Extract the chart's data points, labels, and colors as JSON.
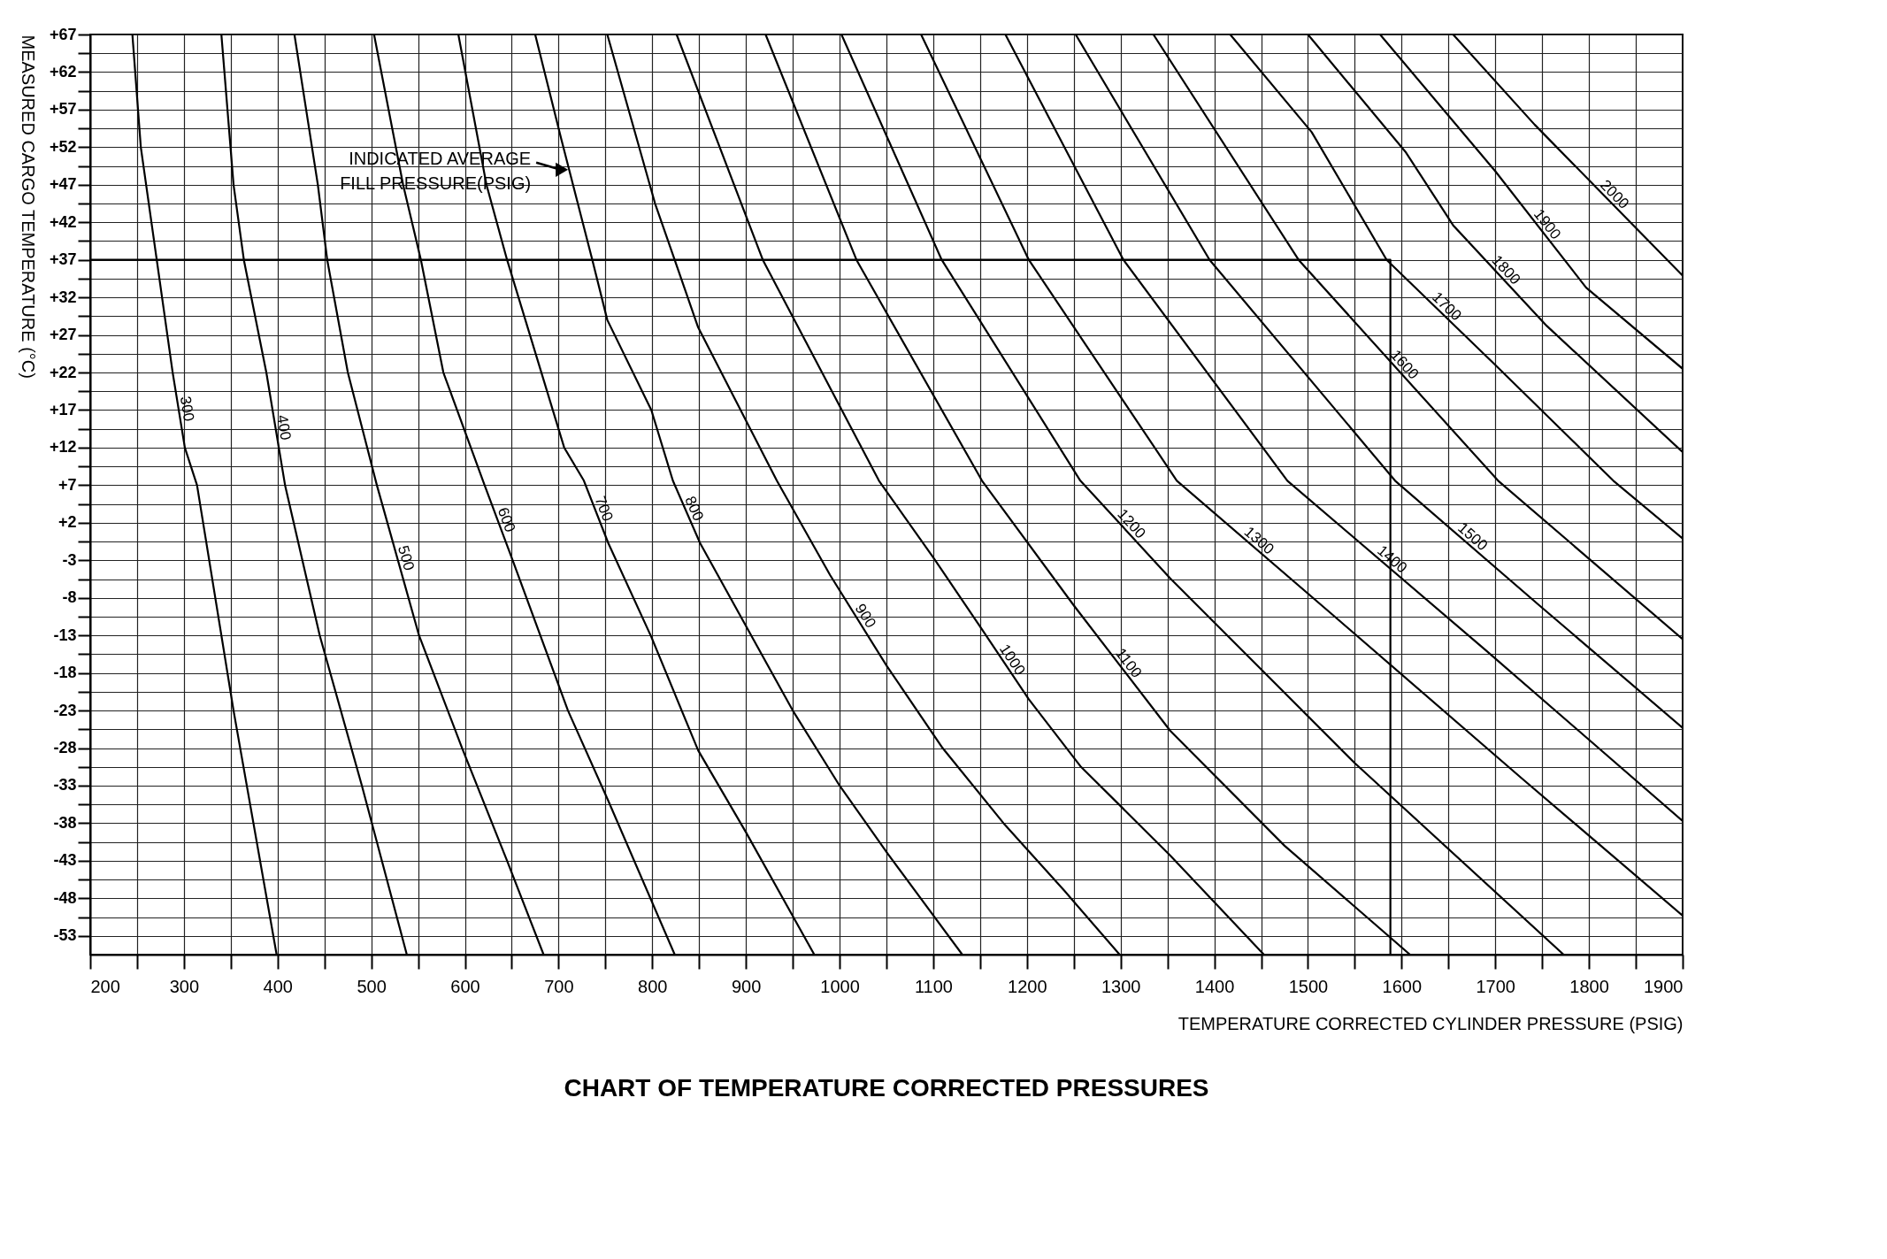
{
  "chart_data": {
    "type": "line",
    "title": "CHART OF TEMPERATURE CORRECTED PRESSURES",
    "xlabel": "TEMPERATURE CORRECTED CYLINDER PRESSURE (PSIG)",
    "ylabel": "MEASURED CARGO TEMPERATURE (°C)",
    "xlim": [
      200,
      1900
    ],
    "ylim": [
      -55.5,
      67
    ],
    "xticks": [
      200,
      {
        "value": 250,
        "label": null
      },
      300,
      {
        "value": 350,
        "label": null
      },
      400,
      {
        "value": 450,
        "label": null
      },
      500,
      {
        "value": 550,
        "label": null
      },
      600,
      {
        "value": 650,
        "label": null
      },
      700,
      {
        "value": 750,
        "label": null
      },
      800,
      {
        "value": 850,
        "label": null
      },
      900,
      {
        "value": 950,
        "label": null
      },
      1000,
      {
        "value": 1050,
        "label": null
      },
      1100,
      {
        "value": 1150,
        "label": null
      },
      1200,
      {
        "value": 1250,
        "label": null
      },
      1300,
      {
        "value": 1350,
        "label": null
      },
      1400,
      {
        "value": 1450,
        "label": null
      },
      1500,
      {
        "value": 1550,
        "label": null
      },
      1600,
      {
        "value": 1650,
        "label": null
      },
      1700,
      {
        "value": 1750,
        "label": null
      },
      1800,
      {
        "value": 1850,
        "label": null
      },
      1900
    ],
    "yticks": [
      {
        "value": 67,
        "label": "+67"
      },
      {
        "value": 64.5,
        "label": null
      },
      {
        "value": 62,
        "label": "+62"
      },
      {
        "value": 59.5,
        "label": null
      },
      {
        "value": 57,
        "label": "+57"
      },
      {
        "value": 54.5,
        "label": null
      },
      {
        "value": 52,
        "label": "+52"
      },
      {
        "value": 49.5,
        "label": null
      },
      {
        "value": 47,
        "label": "+47"
      },
      {
        "value": 44.5,
        "label": null
      },
      {
        "value": 42,
        "label": "+42"
      },
      {
        "value": 39.5,
        "label": null
      },
      {
        "value": 37,
        "label": "+37"
      },
      {
        "value": 34.5,
        "label": null
      },
      {
        "value": 32,
        "label": "+32"
      },
      {
        "value": 29.5,
        "label": null
      },
      {
        "value": 27,
        "label": "+27"
      },
      {
        "value": 24.5,
        "label": null
      },
      {
        "value": 22,
        "label": "+22"
      },
      {
        "value": 19.5,
        "label": null
      },
      {
        "value": 17,
        "label": "+17"
      },
      {
        "value": 14.5,
        "label": null
      },
      {
        "value": 12,
        "label": "+12"
      },
      {
        "value": 9.5,
        "label": null
      },
      {
        "value": 7,
        "label": "+7"
      },
      {
        "value": 4.5,
        "label": null
      },
      {
        "value": 2,
        "label": "+2"
      },
      {
        "value": -0.5,
        "label": null
      },
      -3,
      {
        "value": -5.5,
        "label": null
      },
      -8,
      {
        "value": -10.5,
        "label": null
      },
      -13,
      {
        "value": -15.5,
        "label": null
      },
      -18,
      {
        "value": -20.5,
        "label": null
      },
      -23,
      {
        "value": -25.5,
        "label": null
      },
      -28,
      {
        "value": -30.5,
        "label": null
      },
      -33,
      {
        "value": -35.5,
        "label": null
      },
      -38,
      {
        "value": -40.5,
        "label": null
      },
      -43,
      {
        "value": -45.5,
        "label": null
      },
      -48,
      {
        "value": -50.5,
        "label": null
      },
      -53
    ],
    "grid": true,
    "legend": false,
    "annotations": [
      {
        "text": "INDICATED AVERAGE FILL PRESSURE(PSIG)",
        "x": 712,
        "y": 49
      }
    ],
    "series": [
      {
        "name": "300",
        "color": "#000000",
        "x": [
          245,
          254,
          271,
          288,
          301,
          314,
          353,
          399
        ],
        "values": [
          67,
          52,
          37,
          22,
          12,
          7,
          -23,
          -55.5
        ]
      },
      {
        "name": "400",
        "color": "#000000",
        "x": [
          340,
          353,
          364,
          388,
          408,
          445,
          490,
          538
        ],
        "values": [
          67,
          47,
          37,
          22,
          7,
          -13,
          -33,
          -55.5
        ]
      },
      {
        "name": "500",
        "color": "#000000",
        "x": [
          418,
          443,
          453,
          475,
          506,
          551,
          597,
          645,
          684
        ],
        "values": [
          67,
          47,
          37,
          22,
          7,
          -13,
          -28,
          -43,
          -55.5
        ]
      },
      {
        "name": "600",
        "color": "#000000",
        "x": [
          503,
          534,
          553,
          577,
          621,
          651,
          710,
          753,
          824
        ],
        "values": [
          67,
          47,
          37,
          22,
          7,
          -3,
          -23,
          -35,
          -55.5
        ]
      },
      {
        "name": "700",
        "color": "#000000",
        "x": [
          593,
          623,
          645,
          706,
          727,
          753,
          799,
          849,
          900,
          973
        ],
        "values": [
          67,
          47,
          37,
          12,
          7.6,
          -0.7,
          -13.2,
          -28.3,
          -39.2,
          -55.5
        ]
      },
      {
        "name": "800",
        "color": "#000000",
        "x": [
          675,
          703,
          736,
          752,
          799,
          822,
          851,
          950,
          1000,
          1051,
          1131
        ],
        "values": [
          67,
          53,
          37,
          29,
          17,
          7.6,
          -0.7,
          -23,
          -33,
          -42,
          -55.5
        ]
      },
      {
        "name": "900",
        "color": "#000000",
        "x": [
          752,
          803,
          849,
          933,
          990,
          1050,
          1110,
          1175,
          1240,
          1299
        ],
        "values": [
          67,
          44.5,
          28,
          7.6,
          -5,
          -17,
          -28,
          -38,
          -47,
          -55.5
        ]
      },
      {
        "name": "1000",
        "color": "#000000",
        "x": [
          826,
          918,
          1042,
          1101,
          1152,
          1202,
          1257,
          1353,
          1453
        ],
        "values": [
          67,
          37,
          7.6,
          -2.8,
          -12.2,
          -21.5,
          -30.4,
          -42.3,
          -55.5
        ]
      },
      {
        "name": "1100",
        "color": "#000000",
        "x": [
          921,
          1018,
          1152,
          1250,
          1353,
          1475,
          1609
        ],
        "values": [
          67,
          37,
          7.6,
          -9,
          -25.7,
          -41,
          -55.5
        ]
      },
      {
        "name": "1200",
        "color": "#000000",
        "x": [
          1002,
          1109,
          1257,
          1353,
          1550,
          1773
        ],
        "values": [
          67,
          37,
          7.6,
          -5.4,
          -30,
          -55.5
        ]
      },
      {
        "name": "1300",
        "color": "#000000",
        "x": [
          1087,
          1202,
          1360,
          1524,
          1728,
          1900
        ],
        "values": [
          67,
          37,
          7.6,
          -10,
          -32,
          -50.3
        ]
      },
      {
        "name": "1400",
        "color": "#000000",
        "x": [
          1177,
          1303,
          1478,
          1690,
          1900
        ],
        "values": [
          67,
          37,
          7.6,
          -15,
          -37.7
        ]
      },
      {
        "name": "1500",
        "color": "#000000",
        "x": [
          1252,
          1395,
          1593,
          1747,
          1900
        ],
        "values": [
          67,
          37,
          7.6,
          -9,
          -25.3
        ]
      },
      {
        "name": "1600",
        "color": "#000000",
        "x": [
          1335,
          1490,
          1703,
          1900
        ],
        "values": [
          67,
          37,
          7.6,
          -13.5
        ]
      },
      {
        "name": "1700",
        "color": "#000000",
        "x": [
          1417,
          1504,
          1584,
          1700,
          1826,
          1900
        ],
        "values": [
          67,
          54,
          37,
          23,
          7.6,
          -0.1
        ]
      },
      {
        "name": "1800",
        "color": "#000000",
        "x": [
          1500,
          1604,
          1655,
          1755,
          1900
        ],
        "values": [
          67,
          51.4,
          41.6,
          28.2,
          11.4
        ]
      },
      {
        "name": "1900",
        "color": "#000000",
        "x": [
          1577,
          1700,
          1797,
          1900
        ],
        "values": [
          67,
          48.8,
          33.3,
          22.5
        ]
      },
      {
        "name": "2000",
        "color": "#000000",
        "x": [
          1655,
          1742,
          1900
        ],
        "values": [
          67,
          55,
          34.9
        ]
      },
      {
        "color": "#000000",
        "x": [
          200,
          1588,
          1588
        ],
        "values": [
          37,
          37,
          -55.5
        ]
      }
    ]
  }
}
